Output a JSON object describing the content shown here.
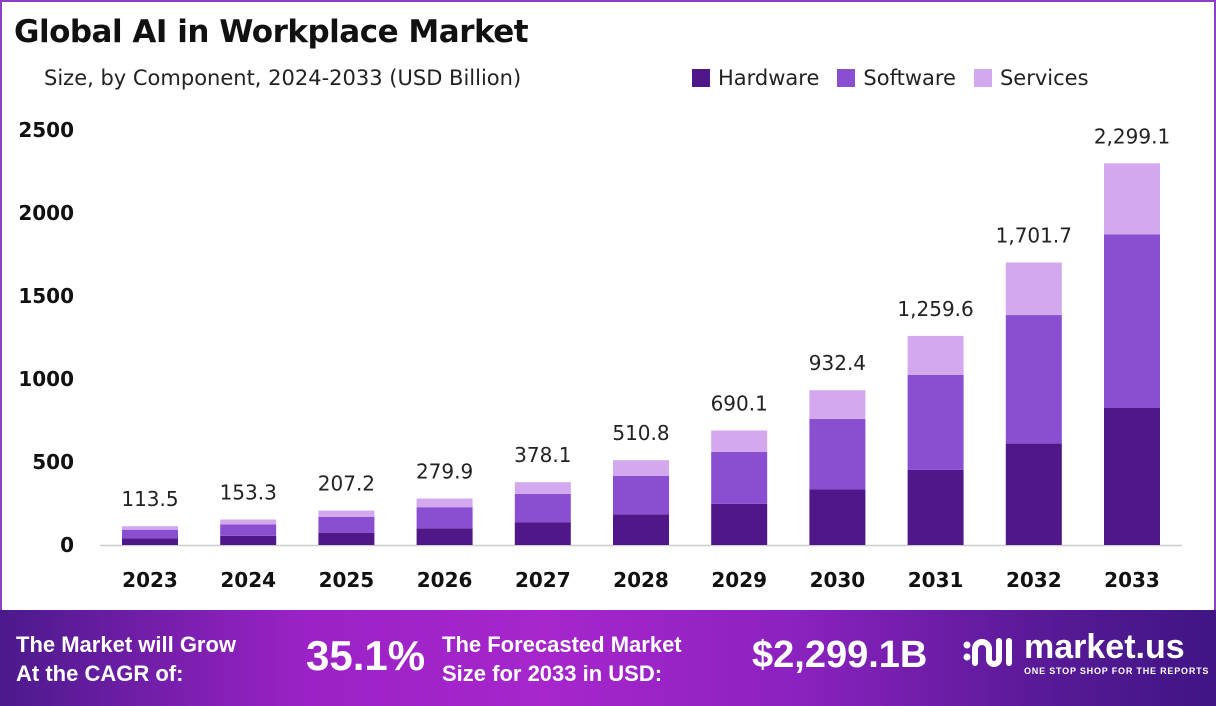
{
  "chart_data": {
    "type": "bar",
    "stacked": true,
    "title": "Global AI in Workplace Market",
    "subtitle": "Size, by Component, 2024-2033 (USD Billion)",
    "categories": [
      "2023",
      "2024",
      "2025",
      "2026",
      "2027",
      "2028",
      "2029",
      "2030",
      "2031",
      "2032",
      "2033"
    ],
    "series": [
      {
        "name": "Hardware",
        "color": "#4f1787",
        "values": [
          40.7,
          55.0,
          74.4,
          100.5,
          135.7,
          183.4,
          247.7,
          334.7,
          452.2,
          610.9,
          825.4
        ]
      },
      {
        "name": "Software",
        "color": "#8a4fd0",
        "values": [
          51.6,
          69.8,
          94.3,
          127.4,
          172.0,
          232.4,
          314.0,
          424.2,
          573.1,
          774.3,
          1046.1
        ]
      },
      {
        "name": "Services",
        "color": "#d4a8ec",
        "values": [
          21.2,
          28.5,
          38.5,
          52.0,
          70.4,
          95.0,
          128.4,
          173.5,
          234.3,
          316.5,
          427.6
        ]
      }
    ],
    "totals_labels": [
      "113.5",
      "153.3",
      "207.2",
      "279.9",
      "378.1",
      "510.8",
      "690.1",
      "932.4",
      "1,259.6",
      "1,701.7",
      "2,299.1"
    ],
    "yticks": [
      "0",
      "500",
      "1000",
      "1500",
      "2000",
      "2500"
    ],
    "ylim": [
      0,
      2500
    ],
    "grid": false,
    "legend": "top-right",
    "xlabel": "",
    "ylabel": ""
  },
  "footer": {
    "cagr_label_1": "The Market will Grow",
    "cagr_label_2": "At the CAGR of:",
    "cagr_value": "35.1%",
    "forecast_label_1": "The Forecasted Market",
    "forecast_label_2": "Size for 2033 in USD:",
    "forecast_value": "$2,299.1B",
    "brand": "market.us",
    "brand_tagline": "ONE STOP SHOP FOR THE REPORTS"
  }
}
